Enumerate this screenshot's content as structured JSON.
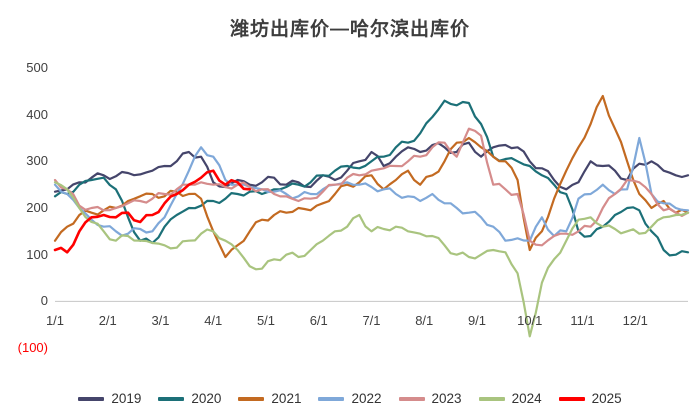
{
  "chart_data": {
    "type": "line",
    "title": "潍坊出库价—哈尔滨出库价",
    "xlabel": "",
    "ylabel": "",
    "ylim": [
      -100,
      500
    ],
    "grid": false,
    "legend_position": "bottom",
    "yticks": [
      {
        "label": "500",
        "value": 500
      },
      {
        "label": "400",
        "value": 400
      },
      {
        "label": "300",
        "value": 300
      },
      {
        "label": "200",
        "value": 200
      },
      {
        "label": "100",
        "value": 100
      },
      {
        "label": "0",
        "value": 0
      },
      {
        "label": "(100)",
        "value": -100,
        "color": "#ff0000"
      }
    ],
    "xticks": [
      "1/1",
      "2/1",
      "3/1",
      "4/1",
      "5/1",
      "6/1",
      "7/1",
      "8/1",
      "9/1",
      "10/1",
      "11/1",
      "12/1"
    ],
    "points_per_year": 53,
    "series": [
      {
        "name": "2019",
        "color": "#45456b",
        "values": [
          235,
          240,
          255,
          265,
          270,
          268,
          275,
          272,
          280,
          290,
          300,
          320,
          310,
          255,
          245,
          260,
          250,
          255,
          265,
          250,
          255,
          245,
          270,
          260,
          280,
          300,
          320,
          290,
          310,
          330,
          320,
          335,
          330,
          320,
          340,
          310,
          330,
          335,
          330,
          300,
          285,
          260,
          240,
          255,
          300,
          290,
          280,
          260,
          295,
          300,
          280,
          270,
          270
        ]
      },
      {
        "name": "2020",
        "color": "#1c7078",
        "values": [
          225,
          230,
          250,
          260,
          265,
          240,
          180,
          130,
          125,
          160,
          185,
          200,
          205,
          215,
          220,
          230,
          235,
          230,
          240,
          245,
          250,
          255,
          270,
          280,
          290,
          285,
          300,
          310,
          330,
          340,
          360,
          395,
          430,
          420,
          425,
          380,
          310,
          305,
          300,
          290,
          270,
          250,
          230,
          150,
          140,
          160,
          185,
          200,
          195,
          150,
          110,
          100,
          105
        ]
      },
      {
        "name": "2021",
        "color": "#c36a21",
        "values": [
          130,
          160,
          185,
          190,
          195,
          200,
          215,
          225,
          230,
          225,
          235,
          230,
          220,
          150,
          95,
          120,
          150,
          175,
          185,
          190,
          200,
          195,
          210,
          230,
          250,
          255,
          270,
          240,
          260,
          280,
          250,
          270,
          300,
          340,
          350,
          330,
          310,
          300,
          260,
          110,
          150,
          220,
          280,
          330,
          380,
          440,
          370,
          300,
          230,
          200,
          215,
          190,
          190
        ]
      },
      {
        "name": "2022",
        "color": "#7fa8d9",
        "values": [
          250,
          230,
          200,
          175,
          160,
          150,
          145,
          155,
          150,
          180,
          230,
          280,
          330,
          310,
          260,
          250,
          245,
          240,
          235,
          230,
          225,
          230,
          240,
          250,
          255,
          250,
          245,
          240,
          230,
          225,
          215,
          230,
          210,
          200,
          190,
          180,
          160,
          130,
          135,
          130,
          180,
          140,
          150,
          220,
          230,
          250,
          230,
          240,
          350,
          230,
          210,
          200,
          195
        ]
      },
      {
        "name": "2023",
        "color": "#d58c8c",
        "values": [
          260,
          240,
          205,
          200,
          195,
          200,
          210,
          215,
          220,
          230,
          240,
          250,
          255,
          250,
          245,
          250,
          245,
          240,
          230,
          225,
          215,
          220,
          235,
          250,
          265,
          270,
          280,
          285,
          290,
          300,
          310,
          330,
          340,
          310,
          370,
          355,
          250,
          240,
          230,
          130,
          120,
          140,
          145,
          150,
          160,
          200,
          230,
          260,
          255,
          230,
          195,
          190,
          190
        ]
      },
      {
        "name": "2024",
        "color": "#a9c47f",
        "values": [
          255,
          240,
          200,
          170,
          150,
          130,
          140,
          130,
          125,
          120,
          115,
          130,
          145,
          150,
          130,
          110,
          75,
          70,
          90,
          100,
          95,
          110,
          130,
          150,
          160,
          185,
          150,
          155,
          160,
          150,
          145,
          140,
          120,
          100,
          95,
          100,
          110,
          105,
          60,
          -75,
          40,
          90,
          130,
          175,
          180,
          160,
          155,
          150,
          145,
          160,
          180,
          185,
          190
        ]
      },
      {
        "name": "2025",
        "color": "#ff0000",
        "values": [
          110,
          105,
          150,
          180,
          185,
          180,
          190,
          170,
          185,
          210,
          230,
          250,
          265,
          280,
          250,
          255,
          240
        ]
      }
    ]
  }
}
